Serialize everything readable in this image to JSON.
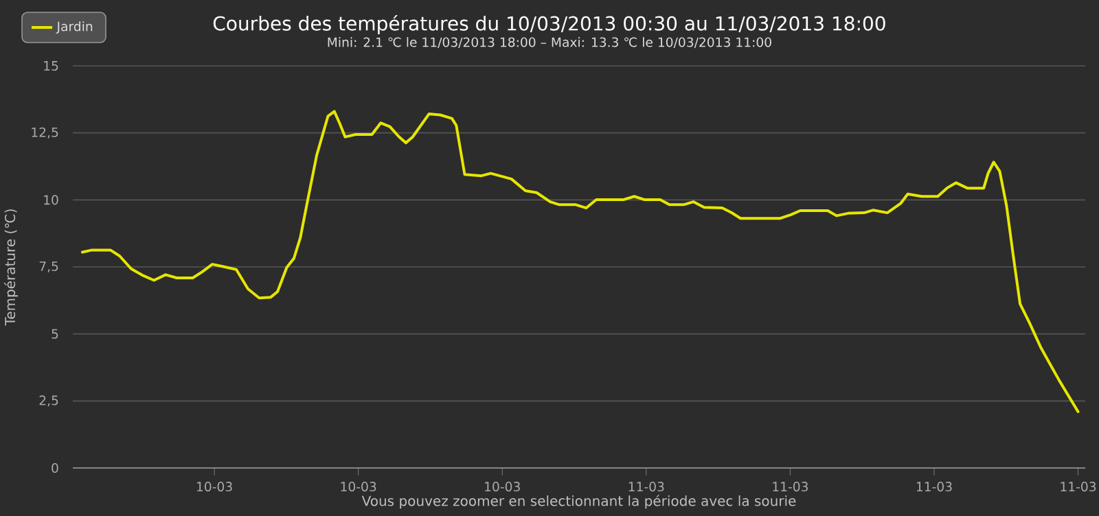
{
  "chart_data": {
    "type": "line",
    "title": "Courbes des températures du 10/03/2013 00:30 au 11/03/2013 18:00",
    "subtitle": "Mini: 2.1 ℃ le 11/03/2013 18:00 – Maxi: 13.3 ℃ le 10/03/2013 11:00",
    "xlabel": "Vous pouvez zoomer en selectionnant la période avec la sourie",
    "ylabel": "Température (℃)",
    "x": [
      "2013-03-10T00:30",
      "2013-03-10T00:54",
      "2013-03-10T01:40",
      "2013-03-10T02:03",
      "2013-03-10T02:32",
      "2013-03-10T03:00",
      "2013-03-10T03:29",
      "2013-03-10T03:58",
      "2013-03-10T04:26",
      "2013-03-10T05:06",
      "2013-03-10T05:29",
      "2013-03-10T05:55",
      "2013-03-10T06:26",
      "2013-03-10T06:55",
      "2013-03-10T07:24",
      "2013-03-10T07:52",
      "2013-03-10T08:21",
      "2013-03-10T08:38",
      "2013-03-10T09:01",
      "2013-03-10T09:19",
      "2013-03-10T09:35",
      "2013-03-10T09:53",
      "2013-03-10T10:16",
      "2013-03-10T10:44",
      "2013-03-10T11:00",
      "2013-03-10T11:13",
      "2013-03-10T11:27",
      "2013-03-10T11:53",
      "2013-03-10T12:34",
      "2013-03-10T12:56",
      "2013-03-10T13:19",
      "2013-03-10T13:42",
      "2013-03-10T13:59",
      "2013-03-10T14:16",
      "2013-03-10T14:57",
      "2013-03-10T15:25",
      "2013-03-10T15:54",
      "2013-03-10T16:05",
      "2013-03-10T16:26",
      "2013-03-10T17:08",
      "2013-03-10T17:31",
      "2013-03-10T18:23",
      "2013-03-10T18:58",
      "2013-03-10T19:26",
      "2013-03-10T20:00",
      "2013-03-10T20:23",
      "2013-03-10T21:04",
      "2013-03-10T21:30",
      "2013-03-10T21:55",
      "2013-03-10T23:04",
      "2013-03-10T23:30",
      "2013-03-10T23:55",
      "2013-03-11T00:35",
      "2013-03-11T00:58",
      "2013-03-11T01:33",
      "2013-03-11T01:58",
      "2013-03-11T02:25",
      "2013-03-11T03:10",
      "2013-03-11T03:33",
      "2013-03-11T03:56",
      "2013-03-11T05:34",
      "2013-03-11T06:02",
      "2013-03-11T06:25",
      "2013-03-11T07:34",
      "2013-03-11T07:56",
      "2013-03-11T08:25",
      "2013-03-11T09:05",
      "2013-03-11T09:28",
      "2013-03-11T10:03",
      "2013-03-11T10:37",
      "2013-03-11T10:54",
      "2013-03-11T11:29",
      "2013-03-11T12:09",
      "2013-03-11T12:32",
      "2013-03-11T12:55",
      "2013-03-11T13:23",
      "2013-03-11T14:04",
      "2013-03-11T14:15",
      "2013-03-11T14:29",
      "2013-03-11T14:44",
      "2013-03-11T15:01",
      "2013-03-11T15:18",
      "2013-03-11T15:35",
      "2013-03-11T15:58",
      "2013-03-11T16:27",
      "2013-03-11T17:13",
      "2013-03-11T18:00"
    ],
    "series": [
      {
        "name": "Jardin",
        "color": "#e6e600",
        "values": [
          8.05,
          8.13,
          8.13,
          7.91,
          7.43,
          7.19,
          7.0,
          7.21,
          7.09,
          7.09,
          7.31,
          7.6,
          7.5,
          7.4,
          6.68,
          6.34,
          6.37,
          6.58,
          7.48,
          7.82,
          8.59,
          9.96,
          11.67,
          13.12,
          13.3,
          12.87,
          12.35,
          12.44,
          12.44,
          12.87,
          12.73,
          12.35,
          12.13,
          12.35,
          13.21,
          13.17,
          13.04,
          12.78,
          10.95,
          10.9,
          10.99,
          10.78,
          10.34,
          10.27,
          9.93,
          9.82,
          9.82,
          9.7,
          10.01,
          10.01,
          10.13,
          10.01,
          10.01,
          9.82,
          9.82,
          9.93,
          9.72,
          9.7,
          9.53,
          9.31,
          9.31,
          9.45,
          9.6,
          9.6,
          9.41,
          9.5,
          9.52,
          9.62,
          9.52,
          9.88,
          10.22,
          10.13,
          10.13,
          10.44,
          10.64,
          10.44,
          10.44,
          10.99,
          11.41,
          11.07,
          9.79,
          7.91,
          6.12,
          5.43,
          4.49,
          3.26,
          2.1
        ]
      }
    ],
    "xlim": [
      "2013-03-10T00:06",
      "2013-03-11T18:18"
    ],
    "xticks": [
      {
        "value": "2013-03-10T06:00",
        "label": "10-03"
      },
      {
        "value": "2013-03-10T12:00",
        "label": "10-03"
      },
      {
        "value": "2013-03-10T18:00",
        "label": "10-03"
      },
      {
        "value": "2013-03-11T00:00",
        "label": "11-03"
      },
      {
        "value": "2013-03-11T06:00",
        "label": "11-03"
      },
      {
        "value": "2013-03-11T12:00",
        "label": "11-03"
      },
      {
        "value": "2013-03-11T18:00",
        "label": "11-03"
      }
    ],
    "ylim": [
      0,
      15
    ],
    "yticks": [
      0,
      {
        "value": 2.5,
        "label": "2,5"
      },
      5,
      {
        "value": 7.5,
        "label": "7,5"
      },
      10,
      {
        "value": 12.5,
        "label": "12,5"
      },
      15
    ],
    "grid": "y",
    "legend": "top left",
    "marker": "none",
    "line_style": "solid"
  }
}
